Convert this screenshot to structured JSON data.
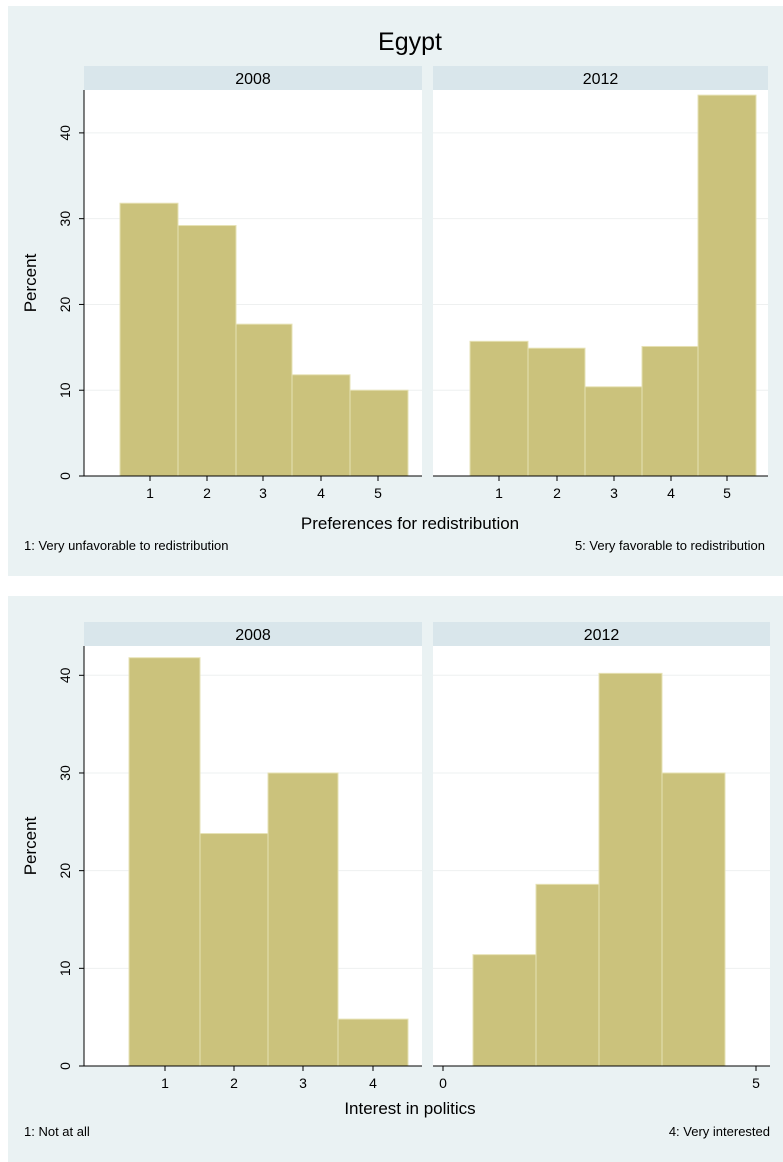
{
  "chart_data": [
    {
      "type": "bar",
      "title": "Egypt",
      "xlabel": "Preferences for redistribution",
      "ylabel": "Percent",
      "ylim": [
        0,
        45
      ],
      "yticks": [
        "0",
        "10",
        "20",
        "30",
        "40"
      ],
      "grid": true,
      "notes": {
        "left": "1: Very unfavorable to redistribution",
        "right": "5: Very favorable to redistribution"
      },
      "facets": [
        {
          "label": "2008",
          "categories": [
            "1",
            "2",
            "3",
            "4",
            "5"
          ],
          "values": [
            31.8,
            29.2,
            17.7,
            11.8,
            10.0
          ]
        },
        {
          "label": "2012",
          "categories": [
            "1",
            "2",
            "3",
            "4",
            "5"
          ],
          "values": [
            15.7,
            14.9,
            10.4,
            15.1,
            44.4
          ]
        }
      ],
      "bar_color": "#cbc27c"
    },
    {
      "type": "bar",
      "title": "",
      "xlabel": "Interest in politics",
      "ylabel": "Percent",
      "ylim": [
        0,
        43
      ],
      "yticks": [
        "0",
        "10",
        "20",
        "30",
        "40"
      ],
      "grid": true,
      "notes": {
        "left": "1: Not at all",
        "right": "4: Very interested"
      },
      "facets": [
        {
          "label": "2008",
          "xticks": [
            "1",
            "2",
            "3",
            "4"
          ],
          "values": [
            41.8,
            23.8,
            30.0,
            4.8
          ]
        },
        {
          "label": "2012",
          "xticks": [
            "0",
            "5"
          ],
          "values": [
            11.4,
            18.6,
            40.2,
            30.0
          ]
        }
      ],
      "bar_color": "#cbc27c"
    }
  ]
}
